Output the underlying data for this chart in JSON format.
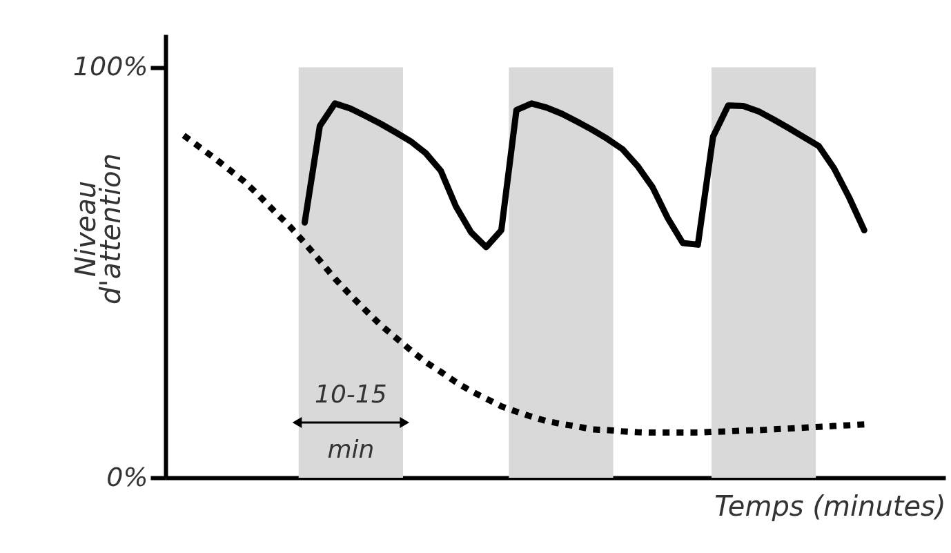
{
  "chart_data": {
    "type": "line",
    "xlabel": "Temps (minutes)",
    "ylabel": "Niveau d'attention",
    "categories": [
      null,
      null,
      null,
      null,
      null,
      null,
      null,
      null,
      null,
      null,
      null,
      null,
      null,
      null,
      null,
      null,
      null,
      null,
      null,
      null,
      null,
      null,
      null,
      null,
      null,
      null,
      null,
      null,
      null,
      null,
      null,
      null,
      null,
      null,
      null,
      null,
      null,
      null,
      null,
      null,
      null,
      null,
      null,
      null,
      null,
      null
    ],
    "ylim": [
      0,
      108
    ],
    "yticks": [
      {
        "value": 0,
        "label": "0%"
      },
      {
        "value": 100,
        "label": "100%"
      }
    ],
    "tick_labels": "y",
    "grid": false,
    "marker": "none",
    "series": [
      {
        "color": "#000000",
        "line_style": "dotted",
        "values": [
          83.4,
          80.7,
          78.0,
          75.1,
          72.2,
          68.7,
          64.9,
          61.3,
          57.2,
          52.9,
          48.5,
          44.6,
          40.9,
          37.3,
          34.2,
          31.1,
          28.2,
          25.8,
          23.3,
          21.1,
          19.3,
          17.4,
          16.1,
          14.9,
          13.8,
          13.1,
          12.5,
          11.8,
          11.6,
          11.3,
          11.1,
          11.0,
          11.0,
          11.0,
          11.0,
          11.2,
          11.3,
          11.5,
          11.6,
          11.8,
          12.0,
          12.2,
          12.4,
          12.6,
          12.8,
          13.0
        ]
      },
      {
        "color": "#000000",
        "line_style": "solid",
        "values": [
          null,
          null,
          null,
          null,
          null,
          null,
          null,
          null,
          62.2,
          85.7,
          91.2,
          90.0,
          88.2,
          86.3,
          84.2,
          82.0,
          79.1,
          74.8,
          66.1,
          59.8,
          56.2,
          60.3,
          89.6,
          91.2,
          90.2,
          88.7,
          86.8,
          84.8,
          82.6,
          80.1,
          76.0,
          70.8,
          63.3,
          57.2,
          56.8,
          83.1,
          90.7,
          90.6,
          89.3,
          87.3,
          85.2,
          83.0,
          80.8,
          75.4,
          68.3,
          60.3
        ]
      }
    ],
    "annotations": [
      "10-15 min"
    ]
  }
}
